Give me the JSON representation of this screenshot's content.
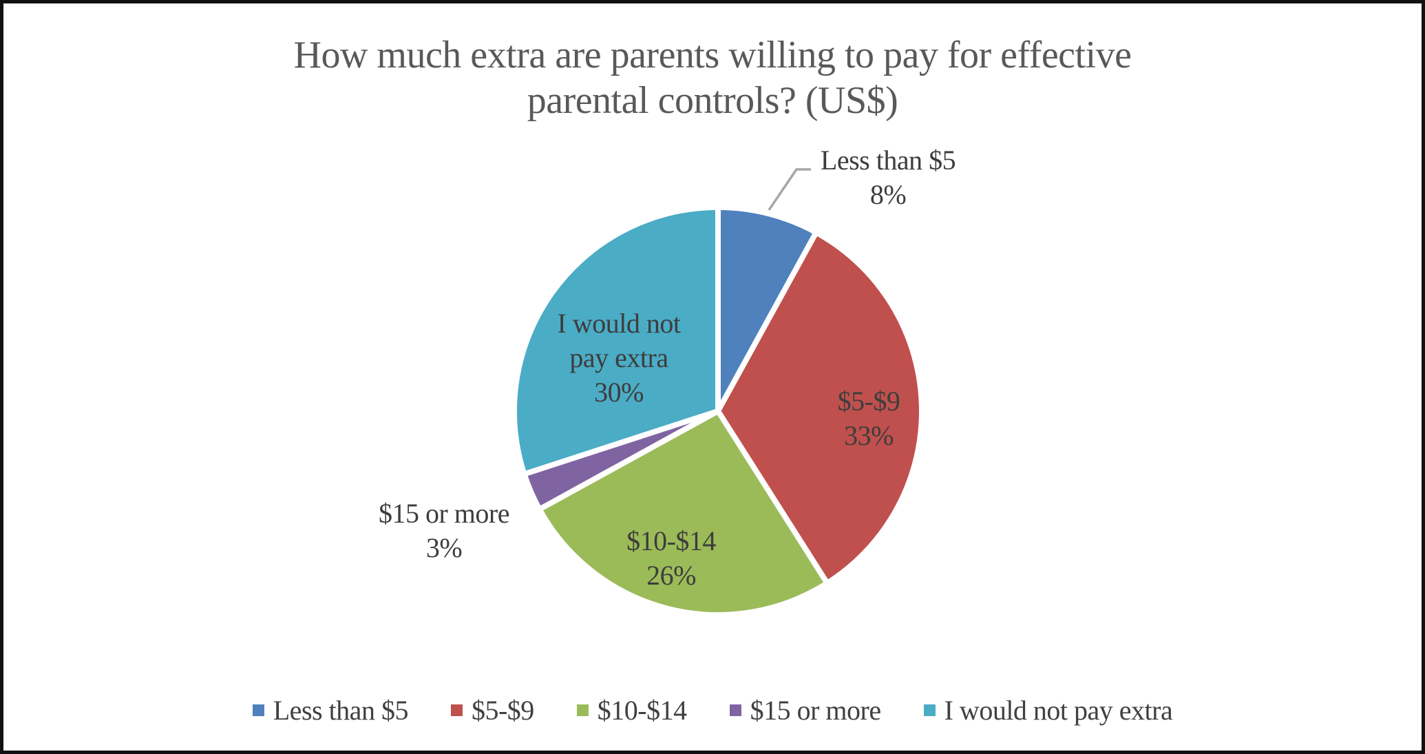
{
  "window": {
    "background_color": "#ffffff",
    "border_color": "#111111"
  },
  "chart_data": {
    "type": "pie",
    "title": "How much extra are parents willing to pay for effective parental controls? (US$)",
    "title_lines": [
      "How much extra are parents willing to pay for effective",
      "parental controls? (US$)"
    ],
    "categories": [
      "Less than $5",
      "$5-$9",
      "$10-$14",
      "$15 or more",
      "I would not pay extra"
    ],
    "values": [
      8,
      33,
      26,
      3,
      30
    ],
    "unit": "%",
    "colors": [
      "#4f81bd",
      "#c0504d",
      "#9bbb59",
      "#8064a2",
      "#4bacc6"
    ],
    "start_angle_deg": 0,
    "direction": "clockwise",
    "slice_separator_color": "#ffffff",
    "title_color": "#595959",
    "label_color": "#3d3d3d",
    "leader_line_color": "#a6a6a6",
    "data_labels": [
      {
        "category": "Less than $5",
        "placement": "outside-top-right",
        "leader_line": true,
        "lines": [
          "Less than $5",
          "8%"
        ]
      },
      {
        "category": "$5-$9",
        "placement": "inside",
        "leader_line": false,
        "lines": [
          "$5-$9",
          "33%"
        ]
      },
      {
        "category": "$10-$14",
        "placement": "inside",
        "leader_line": false,
        "lines": [
          "$10-$14",
          "26%"
        ]
      },
      {
        "category": "$15 or more",
        "placement": "outside-left",
        "leader_line": false,
        "lines": [
          "$15 or more",
          "3%"
        ]
      },
      {
        "category": "I would not pay extra",
        "placement": "inside",
        "leader_line": false,
        "lines": [
          "I would not",
          "pay extra",
          "30%"
        ]
      }
    ],
    "legend": {
      "position": "bottom",
      "entries": [
        {
          "label": "Less than $5"
        },
        {
          "label": "$5-$9"
        },
        {
          "label": "$10-$14"
        },
        {
          "label": "$15 or more"
        },
        {
          "label": "I would not pay extra"
        }
      ]
    }
  }
}
